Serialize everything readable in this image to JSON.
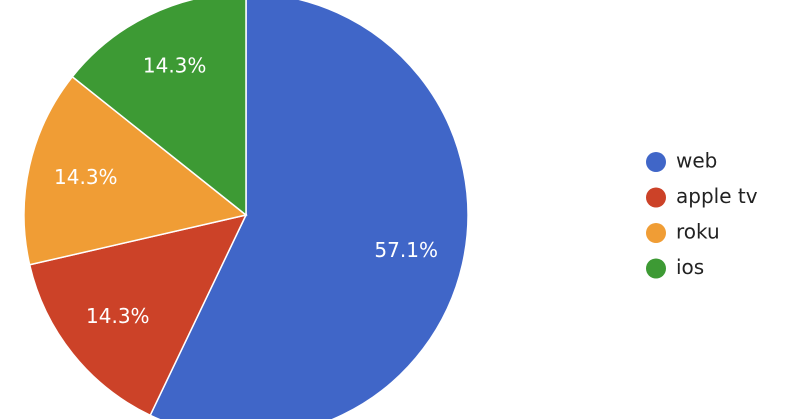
{
  "chart_data": {
    "type": "pie",
    "categories": [
      "web",
      "apple tv",
      "roku",
      "ios"
    ],
    "values": [
      57.1,
      14.3,
      14.3,
      14.3
    ],
    "value_labels": [
      "57.1%",
      "14.3%",
      "14.3%",
      "14.3%"
    ],
    "colors": [
      "#4066c8",
      "#cc4228",
      "#f09d35",
      "#3d9a34"
    ],
    "legend": "right"
  }
}
